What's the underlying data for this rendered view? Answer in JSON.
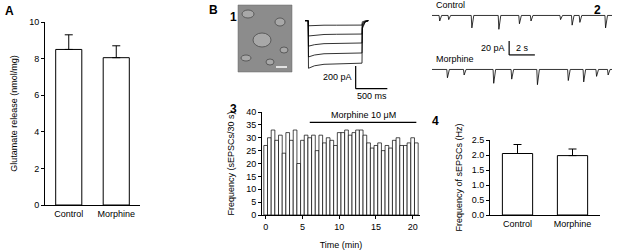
{
  "chart_data": [
    {
      "type": "bar",
      "title": "A",
      "categories": [
        "Control",
        "Morphine"
      ],
      "values": [
        8.5,
        8.05
      ],
      "errors": [
        0.8,
        0.65
      ],
      "color": "#ffffff",
      "ylabel": "Glutamate release (nmol/mg)",
      "ylim": [
        0,
        10
      ],
      "yticks": [
        0,
        2,
        4,
        6,
        8,
        10
      ]
    },
    {
      "type": "line",
      "title": "1",
      "annotations": [
        {
          "text": "B"
        }
      ],
      "color": "#000000",
      "tick_labels": false,
      "x": [
        0,
        50,
        55,
        150,
        300,
        500,
        700,
        900,
        905,
        950,
        1000
      ],
      "series": [
        {
          "values": [
            0,
            0,
            -45,
            -42,
            -40,
            -40,
            -39,
            -39,
            -10,
            -2,
            0
          ]
        },
        {
          "values": [
            0,
            0,
            -135,
            -128,
            -122,
            -120,
            -119,
            -118,
            -25,
            -5,
            0
          ]
        },
        {
          "values": [
            0,
            0,
            -225,
            -212,
            -203,
            -200,
            -198,
            -197,
            -40,
            -8,
            0
          ]
        },
        {
          "values": [
            0,
            0,
            -320,
            -303,
            -292,
            -288,
            -286,
            -285,
            -55,
            -10,
            0
          ]
        },
        {
          "values": [
            0,
            0,
            -420,
            -398,
            -385,
            -380,
            -377,
            -375,
            -70,
            -12,
            0
          ]
        }
      ],
      "xlim": [
        0,
        1500
      ],
      "ylim": [
        -700,
        50
      ],
      "scale_bar": {
        "x": 500,
        "x_label": "500 ms",
        "y": 200,
        "y_label": "200 pA"
      }
    },
    {
      "type": "line",
      "title": "2",
      "color": "#000000",
      "tick_labels": false,
      "series": [
        {
          "name": "Control",
          "x": [
            0,
            0.55,
            0.6,
            0.75,
            1.25,
            1.3,
            1.45,
            3.05,
            3.1,
            3.25,
            5.15,
            5.2,
            5.35,
            6.75,
            6.8,
            6.95,
            7.65,
            7.7,
            7.85,
            9.95,
            10.0,
            10.15,
            10.85,
            10.9,
            11.05,
            11.45,
            11.5,
            11.65,
            13.45,
            13.5,
            13.65,
            14
          ],
          "values": [
            0,
            0,
            -8,
            0,
            0,
            -6,
            0,
            0,
            -18,
            0,
            0,
            -20,
            0,
            0,
            -12,
            0,
            0,
            -8,
            0,
            0,
            -6,
            0,
            0,
            -14,
            0,
            0,
            -10,
            0,
            0,
            -18,
            0,
            0
          ]
        },
        {
          "name": "Morphine",
          "x": [
            0,
            1.15,
            1.2,
            1.35,
            2.45,
            2.5,
            2.65,
            4.75,
            4.8,
            4.95,
            6.15,
            6.2,
            6.35,
            8.15,
            8.2,
            8.35,
            10.55,
            10.6,
            10.75,
            11.75,
            11.8,
            11.95,
            12.75,
            12.8,
            12.95,
            13.65,
            13.7,
            13.85,
            14
          ],
          "values": [
            0,
            0,
            -12,
            0,
            0,
            -8,
            0,
            0,
            -20,
            0,
            0,
            -14,
            0,
            0,
            -22,
            0,
            0,
            -16,
            0,
            0,
            -18,
            0,
            0,
            -10,
            0,
            0,
            -8,
            0,
            0
          ]
        }
      ],
      "xlim": [
        0,
        14
      ],
      "ylim": [
        -60,
        5
      ],
      "scale_bar": {
        "x": 2,
        "x_label": "2 s",
        "y": 20,
        "y_label": "20 pA"
      }
    },
    {
      "type": "bar",
      "title": "3",
      "color": "#ffffff",
      "x": [
        0,
        0.5,
        1,
        1.5,
        2,
        2.5,
        3,
        3.5,
        4,
        4.5,
        5,
        5.5,
        6,
        6.5,
        7,
        7.5,
        8,
        8.5,
        9,
        9.5,
        10,
        10.5,
        11,
        11.5,
        12,
        12.5,
        13,
        13.5,
        14,
        14.5,
        15,
        15.5,
        16,
        16.5,
        17,
        17.5,
        18,
        18.5,
        19,
        19.5,
        20,
        20.5
      ],
      "values": [
        27,
        30,
        33,
        29,
        31,
        24,
        32,
        29,
        33,
        20,
        29,
        31,
        30,
        31,
        25,
        31,
        28,
        30,
        29,
        27,
        32,
        32,
        33,
        31,
        32,
        33,
        33,
        31,
        28,
        26,
        27,
        28,
        25,
        27,
        26,
        29,
        30,
        27,
        27,
        28,
        30,
        28
      ],
      "xlabel": "Time (min)",
      "ylabel": "Frequency (sEPSCs/30 s)",
      "xlim": [
        -0.5,
        21
      ],
      "xticks": [
        0,
        5,
        10,
        15,
        20
      ],
      "ylim": [
        0,
        40
      ],
      "yticks": [
        0,
        5,
        10,
        15,
        20,
        25,
        30,
        35,
        40
      ],
      "annotations": [
        {
          "text": "Morphine 10 μM",
          "x_start": 6,
          "x_end": 20.5,
          "y": 36
        }
      ]
    },
    {
      "type": "bar",
      "title": "4",
      "categories": [
        "Control",
        "Morphine"
      ],
      "values": [
        2.05,
        1.98
      ],
      "errors": [
        0.3,
        0.22
      ],
      "color": "#ffffff",
      "ylabel": "Frequency of sEPSCs (Hz)",
      "ylim": [
        0,
        2.5
      ],
      "yticks": [
        {
          "value": 0,
          "label": "0.0"
        },
        0.5,
        {
          "value": 1,
          "label": "1.0"
        },
        1.5,
        {
          "value": 2,
          "label": "2.0"
        },
        2.5
      ]
    }
  ]
}
